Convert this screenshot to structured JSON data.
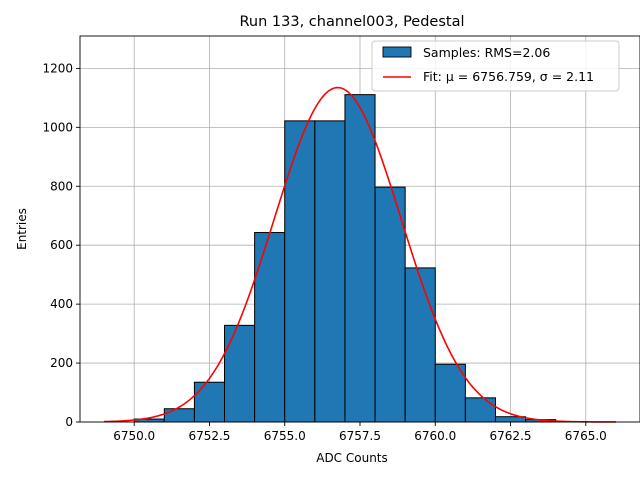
{
  "chart_data": {
    "type": "bar",
    "title": "Run 133, channel003, Pedestal",
    "xlabel": "ADC Counts",
    "ylabel": "Entries",
    "xlim": [
      6748.2,
      6766.8
    ],
    "ylim": [
      0,
      1310
    ],
    "xticks": [
      6750.0,
      6752.5,
      6755.0,
      6757.5,
      6760.0,
      6762.5,
      6765.0
    ],
    "xtick_labels": [
      "6750.0",
      "6752.5",
      "6755.0",
      "6757.5",
      "6760.0",
      "6762.5",
      "6765.0"
    ],
    "yticks": [
      0,
      200,
      400,
      600,
      800,
      1000,
      1200
    ],
    "ytick_labels": [
      "0",
      "200",
      "400",
      "600",
      "800",
      "1000",
      "1200"
    ],
    "grid": true,
    "legend_position": "top-right",
    "bins": [
      {
        "x0": 6750,
        "x1": 6751,
        "value": 10
      },
      {
        "x0": 6751,
        "x1": 6752,
        "value": 45
      },
      {
        "x0": 6752,
        "x1": 6753,
        "value": 135
      },
      {
        "x0": 6753,
        "x1": 6754,
        "value": 328
      },
      {
        "x0": 6754,
        "x1": 6755,
        "value": 643
      },
      {
        "x0": 6755,
        "x1": 6756,
        "value": 1022
      },
      {
        "x0": 6756,
        "x1": 6757,
        "value": 1022
      },
      {
        "x0": 6757,
        "x1": 6758,
        "value": 1111
      },
      {
        "x0": 6758,
        "x1": 6759,
        "value": 797
      },
      {
        "x0": 6759,
        "x1": 6760,
        "value": 523
      },
      {
        "x0": 6760,
        "x1": 6761,
        "value": 196
      },
      {
        "x0": 6761,
        "x1": 6762,
        "value": 82
      },
      {
        "x0": 6762,
        "x1": 6763,
        "value": 18
      },
      {
        "x0": 6763,
        "x1": 6764,
        "value": 8
      }
    ],
    "fit": {
      "type": "gaussian",
      "mu": 6756.759,
      "sigma": 2.11,
      "amplitude": 1135,
      "x_range": [
        6749.0,
        6766.0
      ]
    },
    "series": [
      {
        "name": "Samples: RMS=2.06",
        "kind": "histogram",
        "color": "#1f77b4",
        "edgecolor": "#000000"
      },
      {
        "name": "Fit: μ = 6756.759, σ = 2.11",
        "kind": "line",
        "color": "#ff0000"
      }
    ]
  }
}
